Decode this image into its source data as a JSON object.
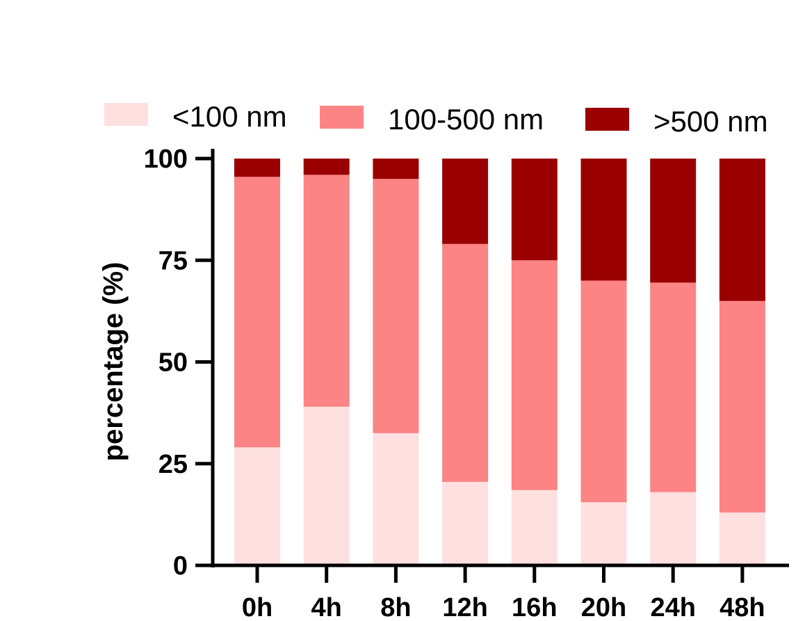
{
  "chart_data": {
    "type": "bar",
    "stacked": true,
    "categories": [
      "0h",
      "4h",
      "8h",
      "12h",
      "16h",
      "20h",
      "24h",
      "48h"
    ],
    "series": [
      {
        "name": "<100 nm",
        "color": "#ffe0e0",
        "values": [
          29,
          39,
          32.5,
          20.5,
          18.5,
          15.5,
          18,
          13
        ]
      },
      {
        "name": "100-500 nm",
        "color": "#fc8484",
        "values": [
          66.5,
          57,
          62.5,
          58.5,
          56.5,
          54.5,
          51.5,
          52
        ]
      },
      {
        "name": ">500 nm",
        "color": "#9a0000",
        "values": [
          4.5,
          4,
          5,
          21,
          25,
          30,
          30.5,
          35
        ]
      }
    ],
    "title": "",
    "xlabel": "",
    "ylabel": "percentage (%)",
    "ylim": [
      0,
      100
    ],
    "yticks": [
      "0",
      "25",
      "50",
      "75",
      "100"
    ],
    "grid": false,
    "legend_position": "top"
  }
}
